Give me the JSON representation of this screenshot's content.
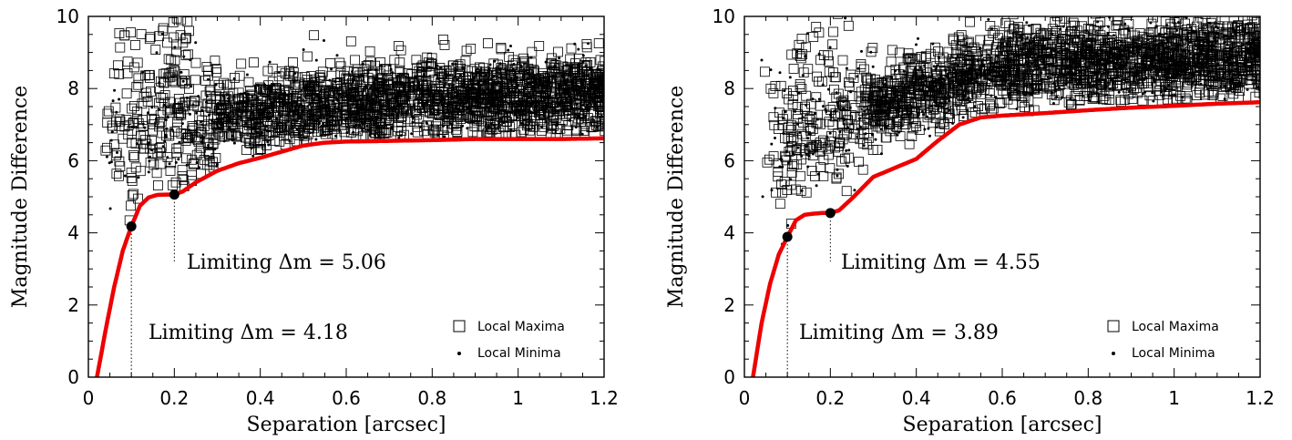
{
  "chart_data": [
    {
      "type": "scatter",
      "xlabel": "Separation [arcsec]",
      "ylabel": "Magnitude Difference",
      "xlim": [
        0,
        1.2
      ],
      "ylim": [
        0,
        10
      ],
      "xticks": [
        0,
        0.2,
        0.4,
        0.6,
        0.8,
        1,
        1.2
      ],
      "xtick_labels": [
        "0",
        "0.2",
        "0.4",
        "0.6",
        "0.8",
        "1",
        "1.2"
      ],
      "yticks": [
        0,
        2,
        4,
        6,
        8,
        10
      ],
      "ytick_labels": [
        "0",
        "2",
        "4",
        "6",
        "8",
        "10"
      ],
      "grid": false,
      "legend_position": "bottom-right",
      "legend": [
        {
          "label": "Local Maxima",
          "marker": "open-square"
        },
        {
          "label": "Local Minima",
          "marker": "dot"
        }
      ],
      "contrast_curve": {
        "color": "#ee0000",
        "x": [
          0.02,
          0.04,
          0.06,
          0.08,
          0.1,
          0.12,
          0.14,
          0.16,
          0.18,
          0.2,
          0.22,
          0.25,
          0.3,
          0.35,
          0.4,
          0.45,
          0.5,
          0.55,
          0.6,
          0.7,
          0.8,
          0.9,
          1.0,
          1.1,
          1.2
        ],
        "y": [
          0.0,
          1.3,
          2.5,
          3.5,
          4.18,
          4.75,
          4.98,
          5.05,
          5.06,
          5.06,
          5.15,
          5.4,
          5.72,
          5.93,
          6.08,
          6.25,
          6.42,
          6.5,
          6.53,
          6.55,
          6.57,
          6.6,
          6.6,
          6.6,
          6.62
        ]
      },
      "limit_markers": [
        {
          "x": 0.1,
          "y": 4.18,
          "label": "Limiting Δm = 4.18"
        },
        {
          "x": 0.2,
          "y": 5.06,
          "label": "Limiting Δm = 5.06"
        }
      ],
      "scatter_envelope": {
        "maxima_y_center": [
          6.4,
          7.2,
          7.6,
          7.8,
          7.9
        ],
        "x_samples": [
          0.1,
          0.3,
          0.6,
          0.9,
          1.2
        ]
      }
    },
    {
      "type": "scatter",
      "xlabel": "Separation [arcsec]",
      "ylabel": "Magnitude Difference",
      "xlim": [
        0,
        1.2
      ],
      "ylim": [
        0,
        10
      ],
      "xticks": [
        0,
        0.2,
        0.4,
        0.6,
        0.8,
        1,
        1.2
      ],
      "xtick_labels": [
        "0",
        "0.2",
        "0.4",
        "0.6",
        "0.8",
        "1",
        "1.2"
      ],
      "yticks": [
        0,
        2,
        4,
        6,
        8,
        10
      ],
      "ytick_labels": [
        "0",
        "2",
        "4",
        "6",
        "8",
        "10"
      ],
      "grid": false,
      "legend_position": "bottom-right",
      "legend": [
        {
          "label": "Local Maxima",
          "marker": "open-square"
        },
        {
          "label": "Local Minima",
          "marker": "dot"
        }
      ],
      "contrast_curve": {
        "color": "#ee0000",
        "x": [
          0.02,
          0.04,
          0.06,
          0.08,
          0.1,
          0.12,
          0.14,
          0.16,
          0.18,
          0.2,
          0.22,
          0.25,
          0.3,
          0.35,
          0.4,
          0.45,
          0.5,
          0.55,
          0.6,
          0.7,
          0.8,
          0.9,
          1.0,
          1.1,
          1.2
        ],
        "y": [
          0.0,
          1.5,
          2.6,
          3.4,
          3.89,
          4.35,
          4.5,
          4.53,
          4.55,
          4.55,
          4.62,
          4.95,
          5.55,
          5.8,
          6.05,
          6.55,
          7.0,
          7.2,
          7.25,
          7.32,
          7.4,
          7.47,
          7.52,
          7.58,
          7.62
        ]
      },
      "limit_markers": [
        {
          "x": 0.1,
          "y": 3.89,
          "label": "Limiting Δm = 3.89"
        },
        {
          "x": 0.2,
          "y": 4.55,
          "label": "Limiting Δm = 4.55"
        }
      ],
      "scatter_envelope": {
        "maxima_y_center": [
          6.0,
          7.6,
          8.6,
          8.8,
          8.9
        ],
        "x_samples": [
          0.1,
          0.3,
          0.6,
          0.9,
          1.2
        ]
      }
    }
  ]
}
